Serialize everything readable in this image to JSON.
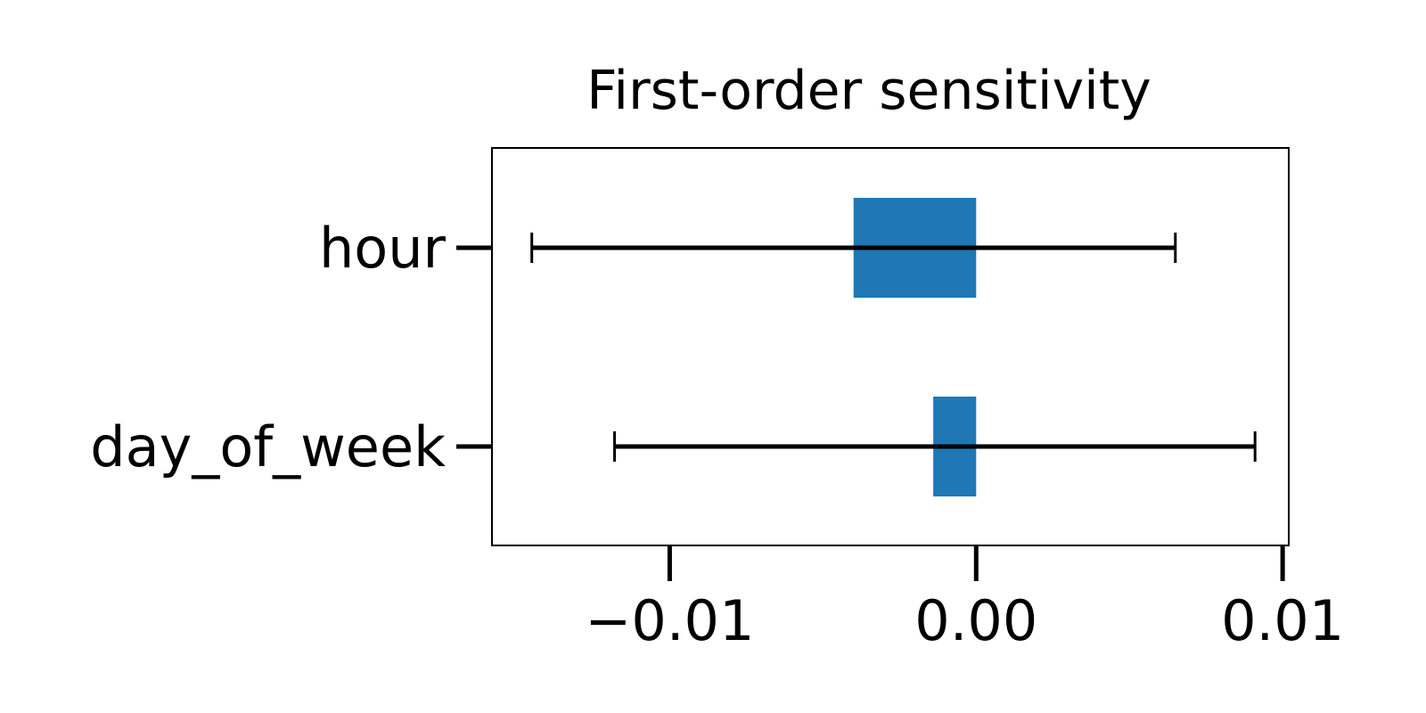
{
  "chart_data": {
    "type": "bar",
    "orientation": "horizontal",
    "title": "First-order sensitivity",
    "xlabel": "",
    "ylabel": "",
    "categories": [
      "hour",
      "day_of_week"
    ],
    "values": [
      -0.004,
      -0.0014
    ],
    "error_low": [
      -0.0145,
      -0.0118
    ],
    "error_high": [
      0.0065,
      0.0091
    ],
    "xlim": [
      -0.0158,
      0.0102
    ],
    "xticks": [
      -0.01,
      0.0,
      0.01
    ],
    "xtick_labels": [
      "−0.01",
      "0.00",
      "0.01"
    ],
    "grid": false,
    "legend": "none",
    "bar_color": "#1f77b4",
    "error_color": "#000000"
  }
}
